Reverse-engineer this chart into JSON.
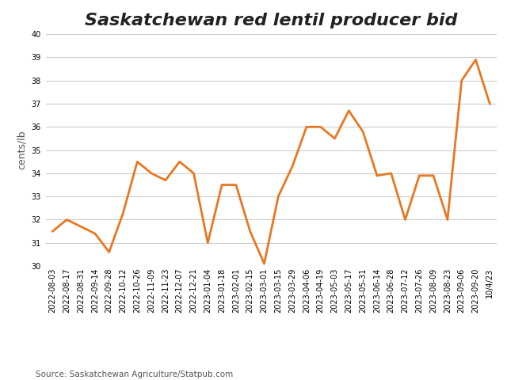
{
  "title": "Saskatchewan red lentil producer bid",
  "ylabel": "cents/lb",
  "source": "Source: Saskatchewan Agriculture/Statpub.com",
  "line_color": "#E87722",
  "line_width": 2.0,
  "background_color": "#ffffff",
  "grid_color": "#cccccc",
  "ylim": [
    30,
    40
  ],
  "yticks": [
    30,
    31,
    32,
    33,
    34,
    35,
    36,
    37,
    38,
    39,
    40
  ],
  "dates": [
    "2022-08-03",
    "2022-08-17",
    "2022-08-31",
    "2022-09-14",
    "2022-09-28",
    "2022-10-12",
    "2022-10-26",
    "2022-11-09",
    "2022-11-23",
    "2022-12-07",
    "2022-12-21",
    "2023-01-04",
    "2023-01-18",
    "2023-02-01",
    "2023-02-15",
    "2023-03-01",
    "2023-03-15",
    "2023-03-29",
    "2023-04-06",
    "2023-04-19",
    "2023-05-03",
    "2023-05-17",
    "2023-05-31",
    "2023-06-14",
    "2023-06-28",
    "2023-07-12",
    "2023-07-26",
    "2023-08-09",
    "2023-08-23",
    "2023-09-06",
    "2023-09-20",
    "10/4/23"
  ],
  "values": [
    31.5,
    32.0,
    31.7,
    31.4,
    30.6,
    32.3,
    34.5,
    34.0,
    33.7,
    34.5,
    34.0,
    31.0,
    33.5,
    33.5,
    31.5,
    30.1,
    33.0,
    34.3,
    36.0,
    36.0,
    35.5,
    36.7,
    35.8,
    33.9,
    34.0,
    32.0,
    33.9,
    33.9,
    32.0,
    38.0,
    38.9,
    37.0
  ],
  "xtick_labels": [
    "2022-08-03",
    "2022-08-17",
    "2022-08-31",
    "2022-09-14",
    "2022-09-28",
    "2022-10-12",
    "2022-10-26",
    "2022-11-09",
    "2022-11-23",
    "2022-12-07",
    "2022-12-21",
    "2023-01-04",
    "2023-01-18",
    "2023-02-01",
    "2023-02-15",
    "2023-03-01",
    "2023-03-15",
    "2023-03-29",
    "2023-04-06",
    "2023-04-19",
    "2023-05-03",
    "2023-05-17",
    "2023-05-31",
    "2023-06-14",
    "2023-06-28",
    "2023-07-12",
    "2023-07-26",
    "2023-08-09",
    "2023-08-23",
    "2023-09-06",
    "2023-09-20",
    "10/4/23"
  ],
  "title_fontsize": 16,
  "tick_fontsize": 7,
  "ylabel_fontsize": 9,
  "source_fontsize": 7.5
}
